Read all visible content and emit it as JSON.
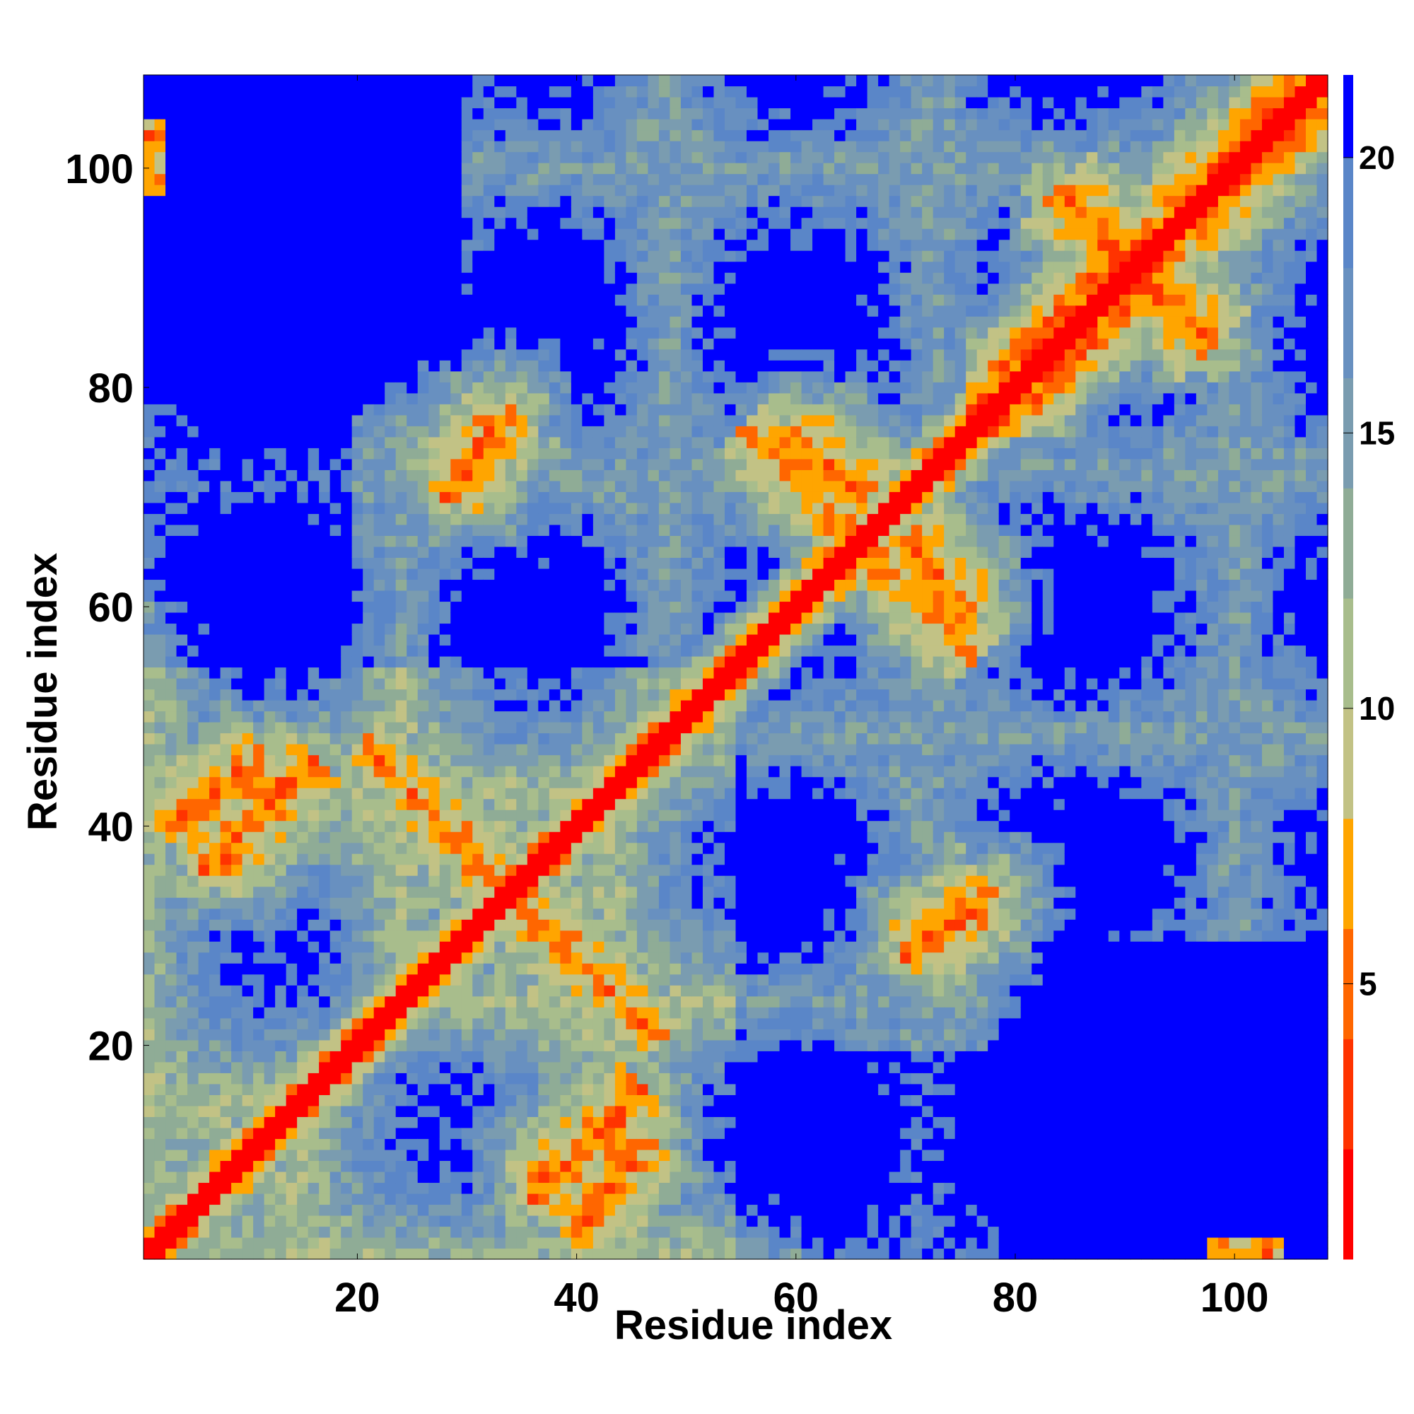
{
  "chart_data": {
    "type": "heatmap",
    "description_of_values": "pairwise residue distance map (symmetric), values are distances; cells above cap shown in top color",
    "xlabel": "Residue index",
    "ylabel": "Residue index",
    "n_residues": 108,
    "xlim": [
      1,
      108
    ],
    "ylim": [
      1,
      108
    ],
    "x_ticks": [
      20,
      40,
      60,
      80,
      100
    ],
    "y_ticks": [
      20,
      40,
      60,
      80,
      100
    ],
    "colorbar": {
      "ticks": [
        5,
        10,
        15,
        20
      ],
      "range": [
        0,
        21.5
      ],
      "levels": [
        {
          "max": 2,
          "color": "#ff0000"
        },
        {
          "max": 4,
          "color": "#ff3300"
        },
        {
          "max": 6,
          "color": "#ff6600"
        },
        {
          "max": 8,
          "color": "#ffa500"
        },
        {
          "max": 10,
          "color": "#c2c285"
        },
        {
          "max": 12,
          "color": "#a8bd8c"
        },
        {
          "max": 14,
          "color": "#8fac96"
        },
        {
          "max": 16,
          "color": "#7a9cb0"
        },
        {
          "max": 18,
          "color": "#6890c0"
        },
        {
          "max": 20,
          "color": "#5a86c8"
        },
        {
          "max": 21.5,
          "color": "#0000ff"
        }
      ]
    },
    "contact_features": [
      {
        "name": "diagonal",
        "i": [
          1,
          108
        ],
        "j": [
          1,
          108
        ],
        "kind": "diag"
      },
      {
        "name": "antiparallel-1",
        "center": [
          34,
          34
        ],
        "kind": "anti",
        "length": 14
      },
      {
        "name": "antiparallel-2",
        "center": [
          66,
          66
        ],
        "kind": "anti",
        "length": 10
      },
      {
        "name": "parallel-1",
        "from": [
          2,
          40
        ],
        "to": [
          12,
          46
        ],
        "kind": "par"
      },
      {
        "name": "parallel-2",
        "from": [
          36,
          6
        ],
        "to": [
          46,
          16
        ],
        "kind": "par"
      },
      {
        "name": "parallel-3",
        "from": [
          70,
          28
        ],
        "to": [
          78,
          34
        ],
        "kind": "par"
      },
      {
        "name": "parallel-4",
        "from": [
          28,
          70
        ],
        "to": [
          34,
          78
        ],
        "kind": "par"
      },
      {
        "name": "parallel-5",
        "from": [
          60,
          76
        ],
        "to": [
          66,
          70
        ],
        "kind": "par"
      },
      {
        "name": "helix-band",
        "from": [
          76,
          76
        ],
        "to": [
          108,
          108
        ],
        "kind": "wide"
      },
      {
        "name": "corner-1",
        "from": [
          98,
          2
        ],
        "to": [
          104,
          2
        ],
        "kind": "spot"
      },
      {
        "name": "corner-2",
        "from": [
          2,
          98
        ],
        "to": [
          2,
          104
        ],
        "kind": "spot"
      }
    ]
  },
  "colors": {
    "far": "#0000ff",
    "contact": "#ff0000"
  }
}
